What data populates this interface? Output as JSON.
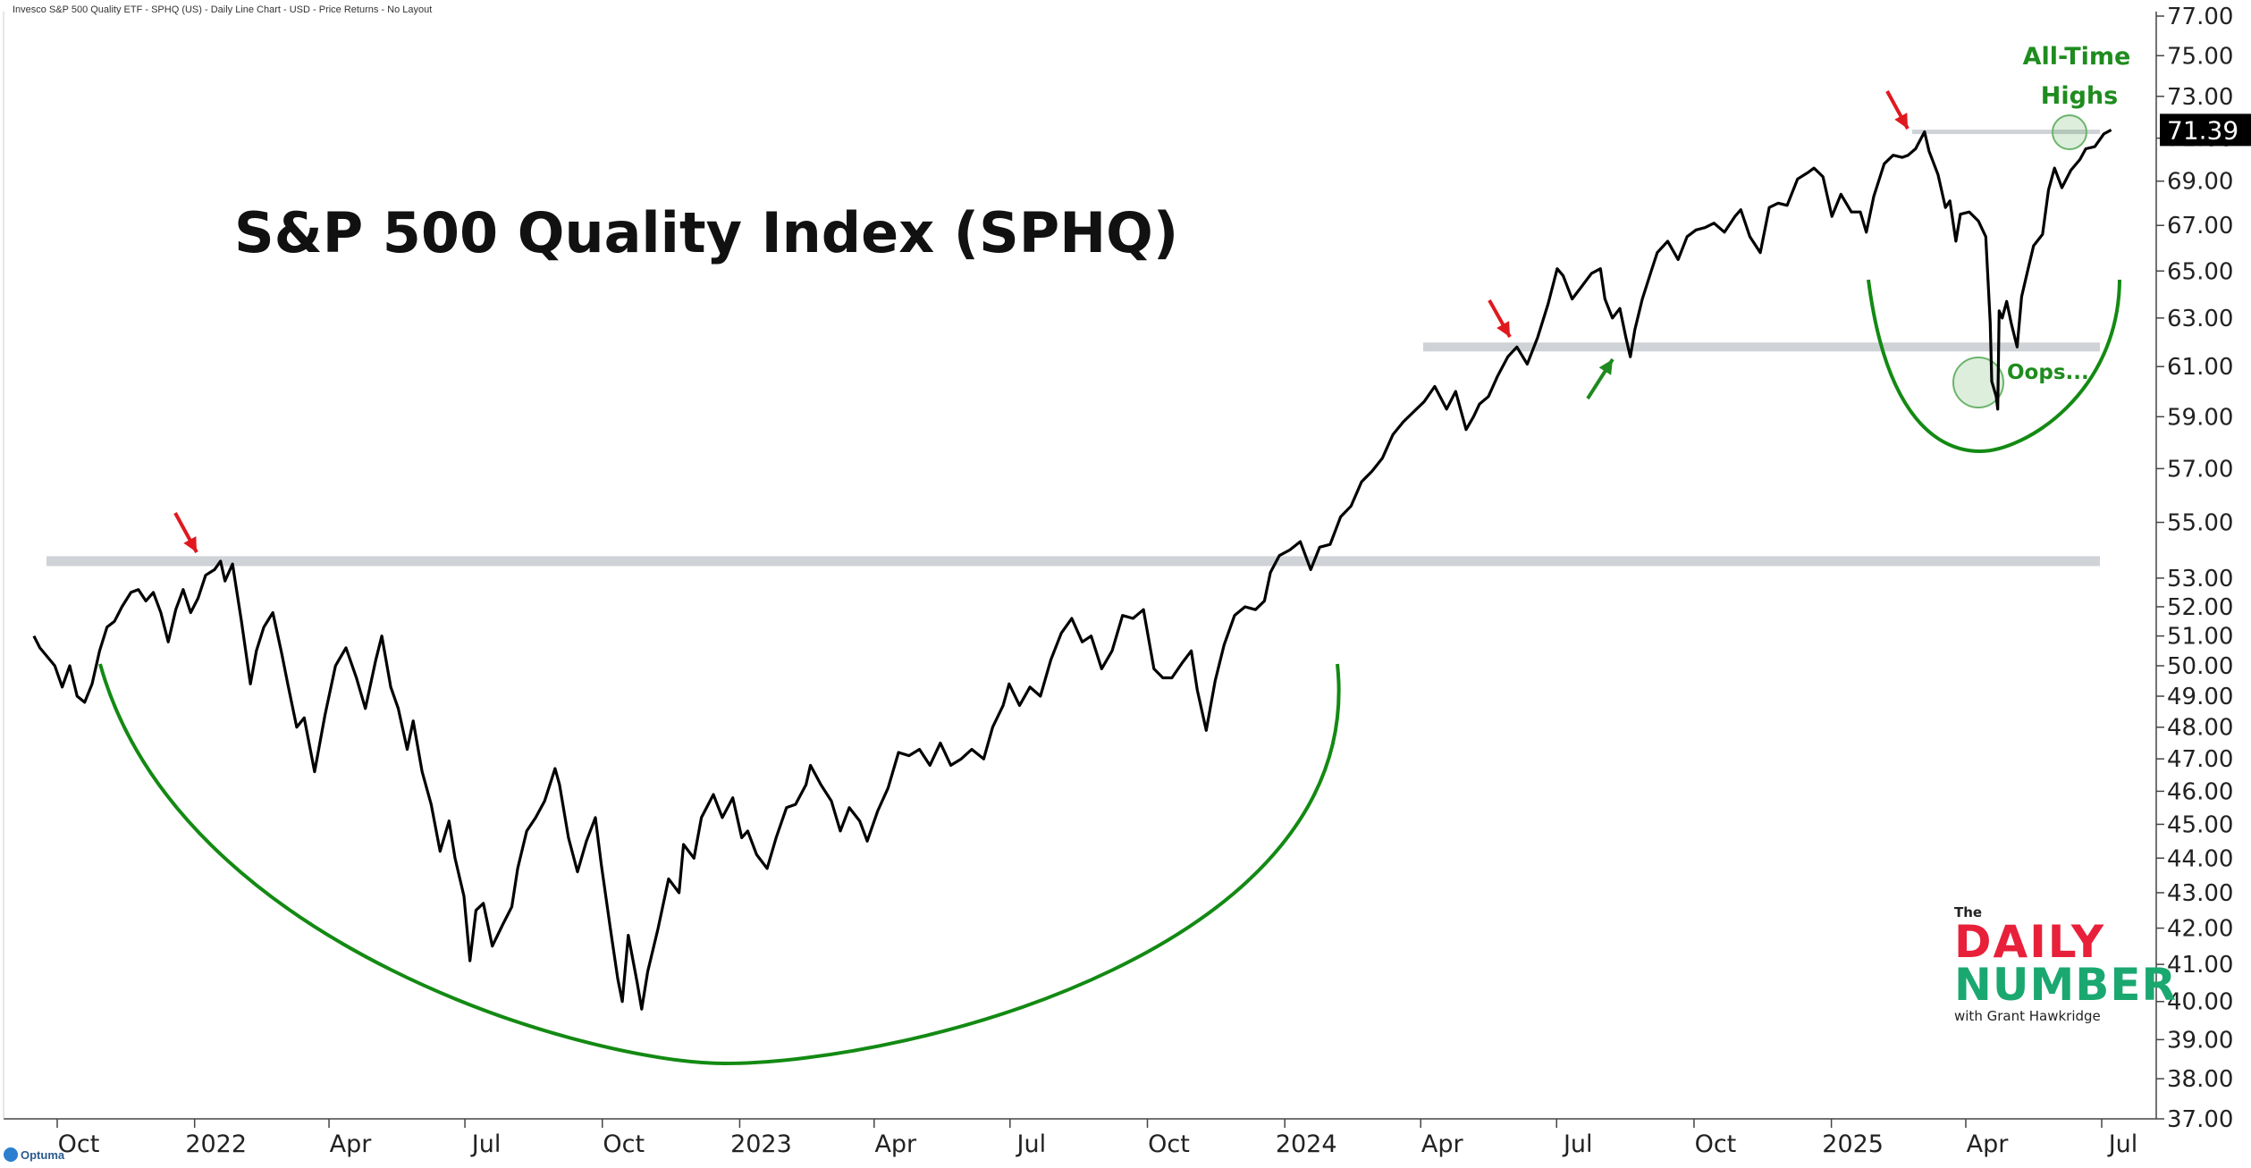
{
  "header": {
    "text": "Invesco S&P 500 Quality ETF - SPHQ (US) - Daily Line Chart - USD - Price Returns - No Layout"
  },
  "brand": {
    "name": "Optuma"
  },
  "logo": {
    "the": "The",
    "daily": "DAILY",
    "number": "NUMBER",
    "with": "with Grant Hawkridge"
  },
  "colors": {
    "price_line": "#000000",
    "cup_arc": "#138a13",
    "arrow_red": "#e0191e",
    "arrow_green": "#1f8a1f",
    "resistance_band": "#cfd2d6",
    "annotation_green": "#1e8c1e"
  },
  "chart_data": {
    "type": "line",
    "title": "S&P 500 Quality Index (SPHQ)",
    "scale": "log",
    "ylim": [
      37,
      77
    ],
    "y_ticks": [
      "37.00",
      "38.00",
      "39.00",
      "40.00",
      "41.00",
      "42.00",
      "43.00",
      "44.00",
      "45.00",
      "46.00",
      "47.00",
      "48.00",
      "49.00",
      "50.00",
      "51.00",
      "52.00",
      "53.00",
      "55.00",
      "57.00",
      "59.00",
      "61.00",
      "63.00",
      "65.00",
      "67.00",
      "69.00",
      "71.00",
      "73.00",
      "75.00",
      "77.00"
    ],
    "y_tick_values": [
      37,
      38,
      39,
      40,
      41,
      42,
      43,
      44,
      45,
      46,
      47,
      48,
      49,
      50,
      51,
      52,
      53,
      55,
      57,
      59,
      61,
      63,
      65,
      67,
      69,
      71,
      73,
      75,
      77
    ],
    "x_ticks": [
      {
        "label": "Oct",
        "date": "2021-10-01"
      },
      {
        "label": "2022",
        "date": "2022-01-01"
      },
      {
        "label": "Apr",
        "date": "2022-04-01"
      },
      {
        "label": "Jul",
        "date": "2022-07-01"
      },
      {
        "label": "Oct",
        "date": "2022-10-01"
      },
      {
        "label": "2023",
        "date": "2023-01-01"
      },
      {
        "label": "Apr",
        "date": "2023-04-01"
      },
      {
        "label": "Jul",
        "date": "2023-07-01"
      },
      {
        "label": "Oct",
        "date": "2023-10-01"
      },
      {
        "label": "2024",
        "date": "2024-01-01"
      },
      {
        "label": "Apr",
        "date": "2024-04-01"
      },
      {
        "label": "Jul",
        "date": "2024-07-01"
      },
      {
        "label": "Oct",
        "date": "2024-10-01"
      },
      {
        "label": "2025",
        "date": "2025-01-01"
      },
      {
        "label": "Apr",
        "date": "2025-04-01"
      },
      {
        "label": "Jul",
        "date": "2025-07-01"
      }
    ],
    "last_price": "71.39",
    "series": [
      {
        "values": [
          [
            "2021-09-01",
            51.0
          ],
          [
            "2021-09-05",
            50.6
          ],
          [
            "2021-09-10",
            50.3
          ],
          [
            "2021-09-15",
            50.0
          ],
          [
            "2021-09-20",
            49.3
          ],
          [
            "2021-09-25",
            50.0
          ],
          [
            "2021-09-30",
            49.0
          ],
          [
            "2021-10-05",
            48.8
          ],
          [
            "2021-10-10",
            49.4
          ],
          [
            "2021-10-15",
            50.5
          ],
          [
            "2021-10-20",
            51.3
          ],
          [
            "2021-10-25",
            51.5
          ],
          [
            "2021-10-30",
            52.0
          ],
          [
            "2021-11-05",
            52.5
          ],
          [
            "2021-11-10",
            52.6
          ],
          [
            "2021-11-15",
            52.2
          ],
          [
            "2021-11-20",
            52.5
          ],
          [
            "2021-11-25",
            51.8
          ],
          [
            "2021-11-30",
            50.8
          ],
          [
            "2021-12-05",
            51.9
          ],
          [
            "2021-12-10",
            52.6
          ],
          [
            "2021-12-15",
            51.8
          ],
          [
            "2021-12-20",
            52.3
          ],
          [
            "2021-12-25",
            53.1
          ],
          [
            "2021-12-31",
            53.3
          ],
          [
            "2022-01-04",
            53.6
          ],
          [
            "2022-01-07",
            52.9
          ],
          [
            "2022-01-12",
            53.5
          ],
          [
            "2022-01-18",
            51.5
          ],
          [
            "2022-01-24",
            49.4
          ],
          [
            "2022-01-28",
            50.5
          ],
          [
            "2022-02-02",
            51.3
          ],
          [
            "2022-02-08",
            51.8
          ],
          [
            "2022-02-14",
            50.4
          ],
          [
            "2022-02-18",
            49.4
          ],
          [
            "2022-02-24",
            48.0
          ],
          [
            "2022-03-01",
            48.3
          ],
          [
            "2022-03-08",
            46.6
          ],
          [
            "2022-03-15",
            48.4
          ],
          [
            "2022-03-22",
            50.0
          ],
          [
            "2022-03-29",
            50.6
          ],
          [
            "2022-04-05",
            49.6
          ],
          [
            "2022-04-11",
            48.6
          ],
          [
            "2022-04-18",
            50.2
          ],
          [
            "2022-04-22",
            51.0
          ],
          [
            "2022-04-28",
            49.3
          ],
          [
            "2022-05-03",
            48.6
          ],
          [
            "2022-05-09",
            47.3
          ],
          [
            "2022-05-13",
            48.2
          ],
          [
            "2022-05-19",
            46.6
          ],
          [
            "2022-05-25",
            45.6
          ],
          [
            "2022-05-31",
            44.2
          ],
          [
            "2022-06-06",
            45.1
          ],
          [
            "2022-06-10",
            44.0
          ],
          [
            "2022-06-16",
            42.9
          ],
          [
            "2022-06-20",
            41.1
          ],
          [
            "2022-06-24",
            42.5
          ],
          [
            "2022-06-29",
            42.7
          ],
          [
            "2022-07-05",
            41.5
          ],
          [
            "2022-07-12",
            42.1
          ],
          [
            "2022-07-18",
            42.6
          ],
          [
            "2022-07-22",
            43.7
          ],
          [
            "2022-07-28",
            44.8
          ],
          [
            "2022-08-03",
            45.2
          ],
          [
            "2022-08-09",
            45.7
          ],
          [
            "2022-08-16",
            46.7
          ],
          [
            "2022-08-19",
            46.2
          ],
          [
            "2022-08-25",
            44.6
          ],
          [
            "2022-08-31",
            43.6
          ],
          [
            "2022-09-06",
            44.5
          ],
          [
            "2022-09-12",
            45.2
          ],
          [
            "2022-09-16",
            43.8
          ],
          [
            "2022-09-22",
            42.0
          ],
          [
            "2022-09-27",
            40.6
          ],
          [
            "2022-09-30",
            40.0
          ],
          [
            "2022-10-04",
            41.8
          ],
          [
            "2022-10-10",
            40.5
          ],
          [
            "2022-10-13",
            39.8
          ],
          [
            "2022-10-17",
            40.8
          ],
          [
            "2022-10-24",
            42.0
          ],
          [
            "2022-10-31",
            43.4
          ],
          [
            "2022-11-07",
            43.0
          ],
          [
            "2022-11-10",
            44.4
          ],
          [
            "2022-11-17",
            44.0
          ],
          [
            "2022-11-22",
            45.2
          ],
          [
            "2022-11-30",
            45.9
          ],
          [
            "2022-12-06",
            45.2
          ],
          [
            "2022-12-13",
            45.8
          ],
          [
            "2022-12-19",
            44.6
          ],
          [
            "2022-12-23",
            44.8
          ],
          [
            "2022-12-29",
            44.1
          ],
          [
            "2023-01-05",
            43.7
          ],
          [
            "2023-01-11",
            44.6
          ],
          [
            "2023-01-18",
            45.5
          ],
          [
            "2023-01-24",
            45.6
          ],
          [
            "2023-01-31",
            46.2
          ],
          [
            "2023-02-03",
            46.8
          ],
          [
            "2023-02-10",
            46.2
          ],
          [
            "2023-02-17",
            45.7
          ],
          [
            "2023-02-23",
            44.8
          ],
          [
            "2023-03-01",
            45.5
          ],
          [
            "2023-03-08",
            45.1
          ],
          [
            "2023-03-13",
            44.5
          ],
          [
            "2023-03-20",
            45.4
          ],
          [
            "2023-03-27",
            46.1
          ],
          [
            "2023-04-03",
            47.2
          ],
          [
            "2023-04-10",
            47.1
          ],
          [
            "2023-04-17",
            47.3
          ],
          [
            "2023-04-24",
            46.8
          ],
          [
            "2023-05-01",
            47.5
          ],
          [
            "2023-05-08",
            46.8
          ],
          [
            "2023-05-15",
            47.0
          ],
          [
            "2023-05-22",
            47.3
          ],
          [
            "2023-05-30",
            47.0
          ],
          [
            "2023-06-05",
            48.0
          ],
          [
            "2023-06-12",
            48.7
          ],
          [
            "2023-06-16",
            49.4
          ],
          [
            "2023-06-23",
            48.7
          ],
          [
            "2023-06-30",
            49.3
          ],
          [
            "2023-07-07",
            49.0
          ],
          [
            "2023-07-14",
            50.2
          ],
          [
            "2023-07-21",
            51.1
          ],
          [
            "2023-07-28",
            51.6
          ],
          [
            "2023-08-04",
            50.8
          ],
          [
            "2023-08-10",
            51.0
          ],
          [
            "2023-08-17",
            49.9
          ],
          [
            "2023-08-24",
            50.5
          ],
          [
            "2023-08-31",
            51.7
          ],
          [
            "2023-09-07",
            51.6
          ],
          [
            "2023-09-14",
            51.9
          ],
          [
            "2023-09-21",
            49.9
          ],
          [
            "2023-09-27",
            49.6
          ],
          [
            "2023-10-03",
            49.6
          ],
          [
            "2023-10-10",
            50.1
          ],
          [
            "2023-10-16",
            50.5
          ],
          [
            "2023-10-20",
            49.2
          ],
          [
            "2023-10-26",
            47.9
          ],
          [
            "2023-11-01",
            49.5
          ],
          [
            "2023-11-07",
            50.7
          ],
          [
            "2023-11-14",
            51.7
          ],
          [
            "2023-11-21",
            52.0
          ],
          [
            "2023-11-28",
            51.9
          ],
          [
            "2023-12-04",
            52.2
          ],
          [
            "2023-12-08",
            53.2
          ],
          [
            "2023-12-14",
            53.8
          ],
          [
            "2023-12-21",
            54.0
          ],
          [
            "2023-12-28",
            54.3
          ],
          [
            "2024-01-04",
            53.3
          ],
          [
            "2024-01-10",
            54.1
          ],
          [
            "2024-01-17",
            54.2
          ],
          [
            "2024-01-24",
            55.2
          ],
          [
            "2024-01-31",
            55.6
          ],
          [
            "2024-02-07",
            56.5
          ],
          [
            "2024-02-14",
            56.9
          ],
          [
            "2024-02-21",
            57.4
          ],
          [
            "2024-02-28",
            58.3
          ],
          [
            "2024-03-06",
            58.8
          ],
          [
            "2024-03-13",
            59.2
          ],
          [
            "2024-03-20",
            59.6
          ],
          [
            "2024-03-27",
            60.2
          ],
          [
            "2024-04-04",
            59.3
          ],
          [
            "2024-04-10",
            60.0
          ],
          [
            "2024-04-17",
            58.5
          ],
          [
            "2024-04-22",
            59.0
          ],
          [
            "2024-04-26",
            59.5
          ],
          [
            "2024-05-02",
            59.8
          ],
          [
            "2024-05-08",
            60.6
          ],
          [
            "2024-05-15",
            61.4
          ],
          [
            "2024-05-21",
            61.8
          ],
          [
            "2024-05-28",
            61.1
          ],
          [
            "2024-06-04",
            62.2
          ],
          [
            "2024-06-11",
            63.6
          ],
          [
            "2024-06-17",
            65.1
          ],
          [
            "2024-06-21",
            64.8
          ],
          [
            "2024-06-27",
            63.8
          ],
          [
            "2024-07-03",
            64.3
          ],
          [
            "2024-07-10",
            64.9
          ],
          [
            "2024-07-16",
            65.1
          ],
          [
            "2024-07-19",
            63.8
          ],
          [
            "2024-07-24",
            63.0
          ],
          [
            "2024-07-29",
            63.4
          ],
          [
            "2024-08-02",
            62.2
          ],
          [
            "2024-08-05",
            61.4
          ],
          [
            "2024-08-08",
            62.5
          ],
          [
            "2024-08-13",
            63.8
          ],
          [
            "2024-08-19",
            65.0
          ],
          [
            "2024-08-23",
            65.8
          ],
          [
            "2024-08-30",
            66.3
          ],
          [
            "2024-09-06",
            65.5
          ],
          [
            "2024-09-12",
            66.5
          ],
          [
            "2024-09-18",
            66.8
          ],
          [
            "2024-09-24",
            66.9
          ],
          [
            "2024-09-30",
            67.1
          ],
          [
            "2024-10-07",
            66.7
          ],
          [
            "2024-10-14",
            67.4
          ],
          [
            "2024-10-18",
            67.7
          ],
          [
            "2024-10-24",
            66.5
          ],
          [
            "2024-10-31",
            65.8
          ],
          [
            "2024-11-06",
            67.8
          ],
          [
            "2024-11-12",
            68.0
          ],
          [
            "2024-11-18",
            67.9
          ],
          [
            "2024-11-25",
            69.1
          ],
          [
            "2024-12-02",
            69.4
          ],
          [
            "2024-12-06",
            69.6
          ],
          [
            "2024-12-12",
            69.2
          ],
          [
            "2024-12-18",
            67.4
          ],
          [
            "2024-12-24",
            68.4
          ],
          [
            "2024-12-31",
            67.6
          ],
          [
            "2025-01-06",
            67.6
          ],
          [
            "2025-01-10",
            66.7
          ],
          [
            "2025-01-15",
            68.3
          ],
          [
            "2025-01-22",
            69.8
          ],
          [
            "2025-01-28",
            70.2
          ],
          [
            "2025-02-03",
            70.1
          ],
          [
            "2025-02-07",
            70.2
          ],
          [
            "2025-02-12",
            70.5
          ],
          [
            "2025-02-18",
            71.3
          ],
          [
            "2025-02-21",
            70.4
          ],
          [
            "2025-02-27",
            69.3
          ],
          [
            "2025-03-04",
            67.8
          ],
          [
            "2025-03-07",
            68.1
          ],
          [
            "2025-03-11",
            66.3
          ],
          [
            "2025-03-14",
            67.5
          ],
          [
            "2025-03-20",
            67.6
          ],
          [
            "2025-03-26",
            67.2
          ],
          [
            "2025-03-31",
            66.5
          ],
          [
            "2025-04-03",
            62.8
          ],
          [
            "2025-04-04",
            60.4
          ],
          [
            "2025-04-07",
            59.8
          ],
          [
            "2025-04-08",
            59.3
          ],
          [
            "2025-04-09",
            63.3
          ],
          [
            "2025-04-11",
            63.0
          ],
          [
            "2025-04-14",
            63.7
          ],
          [
            "2025-04-17",
            62.8
          ],
          [
            "2025-04-21",
            61.8
          ],
          [
            "2025-04-24",
            63.9
          ],
          [
            "2025-04-28",
            65.0
          ],
          [
            "2025-05-02",
            66.1
          ],
          [
            "2025-05-08",
            66.6
          ],
          [
            "2025-05-12",
            68.6
          ],
          [
            "2025-05-16",
            69.6
          ],
          [
            "2025-05-21",
            68.7
          ],
          [
            "2025-05-27",
            69.5
          ],
          [
            "2025-06-02",
            70.0
          ],
          [
            "2025-06-06",
            70.5
          ],
          [
            "2025-06-12",
            70.6
          ],
          [
            "2025-06-18",
            71.2
          ],
          [
            "2025-06-23",
            71.39
          ]
        ]
      }
    ],
    "annotations": {
      "resistance_levels": [
        53.6,
        61.8,
        71.3
      ],
      "oops_label": "Oops...",
      "ath_label_line1": "All-Time",
      "ath_label_line2": "Highs"
    },
    "grid": false,
    "legend": "none"
  }
}
